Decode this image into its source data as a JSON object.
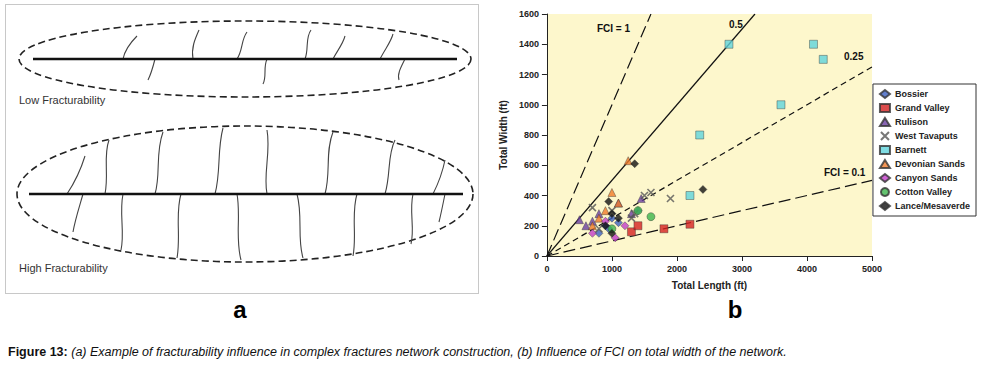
{
  "figure": {
    "caption_label": "Figure 13:",
    "caption": "(a) Example of fracturability influence in complex fractures network construction, (b) Influence of FCI on total width of the network.",
    "panel_a": {
      "label": "a",
      "diagrams": [
        {
          "text": "Low Fracturability"
        },
        {
          "text": "High Fracturability"
        }
      ]
    },
    "panel_b": {
      "label": "b"
    }
  },
  "chart_data": {
    "type": "scatter",
    "x_label": "Total Length (ft)",
    "y_label": "Total Width (ft)",
    "xlim": [
      0,
      5000
    ],
    "xticks": [
      0,
      1000,
      2000,
      3000,
      4000,
      5000
    ],
    "ylim": [
      0,
      1600
    ],
    "yticks": [
      0,
      200,
      400,
      600,
      800,
      1000,
      1200,
      1400,
      1600
    ],
    "grid": false,
    "legend": "right",
    "reference_lines": [
      {
        "name": "FCI = 1",
        "slope": 1,
        "line_style": "longdash"
      },
      {
        "name": "0.5",
        "slope": 0.5,
        "line_style": "solid"
      },
      {
        "name": "0.25",
        "slope": 0.25,
        "line_style": "dashed"
      },
      {
        "name": "FCI = 0.1",
        "slope": 0.1,
        "line_style": "longdash"
      }
    ],
    "series": [
      {
        "name": "Bossier",
        "color": "#3b5fc0",
        "marker": "diamond",
        "x": [
          900,
          1000,
          1100,
          1400,
          800,
          950
        ],
        "values": [
          200,
          250,
          220,
          300,
          150,
          180
        ]
      },
      {
        "name": "Grand Valley",
        "color": "#d42020",
        "marker": "square",
        "x": [
          1300,
          1400,
          1800,
          2200
        ],
        "values": [
          160,
          200,
          180,
          210
        ]
      },
      {
        "name": "Rulison",
        "color": "#6a3fa0",
        "marker": "triangle",
        "x": [
          500,
          700,
          800,
          1100,
          1300,
          1450,
          600
        ],
        "values": [
          240,
          230,
          280,
          350,
          280,
          380,
          200
        ]
      },
      {
        "name": "West Tavaputs",
        "color": "#555555",
        "marker": "x",
        "x": [
          700,
          1000,
          1350,
          1500,
          1900,
          1600,
          1300,
          800
        ],
        "values": [
          320,
          300,
          280,
          400,
          380,
          420,
          250,
          180
        ]
      },
      {
        "name": "Barnett",
        "color": "#5fd3dc",
        "marker": "square",
        "x": [
          2800,
          4100,
          4250,
          3600,
          2350,
          2200
        ],
        "values": [
          1400,
          1400,
          1300,
          1000,
          800,
          400
        ]
      },
      {
        "name": "Devonian Sands",
        "color": "#f07a2a",
        "marker": "triangle",
        "x": [
          1250,
          1000,
          900,
          800,
          1100,
          700
        ],
        "values": [
          630,
          420,
          300,
          250,
          350,
          200
        ]
      },
      {
        "name": "Canyon Sands",
        "color": "#c03cc8",
        "marker": "diamond",
        "x": [
          700,
          1050,
          1200,
          900
        ],
        "values": [
          150,
          120,
          200,
          230
        ]
      },
      {
        "name": "Cotton Valley",
        "color": "#3cb44b",
        "marker": "circle",
        "x": [
          1600,
          1400,
          1000
        ],
        "values": [
          260,
          300,
          180
        ]
      },
      {
        "name": "Lance/Mesaverde",
        "color": "#111111",
        "marker": "diamond",
        "x": [
          1350,
          2400,
          950,
          1000,
          900,
          1000,
          1100
        ],
        "values": [
          610,
          440,
          360,
          280,
          200,
          150,
          250
        ]
      }
    ]
  }
}
